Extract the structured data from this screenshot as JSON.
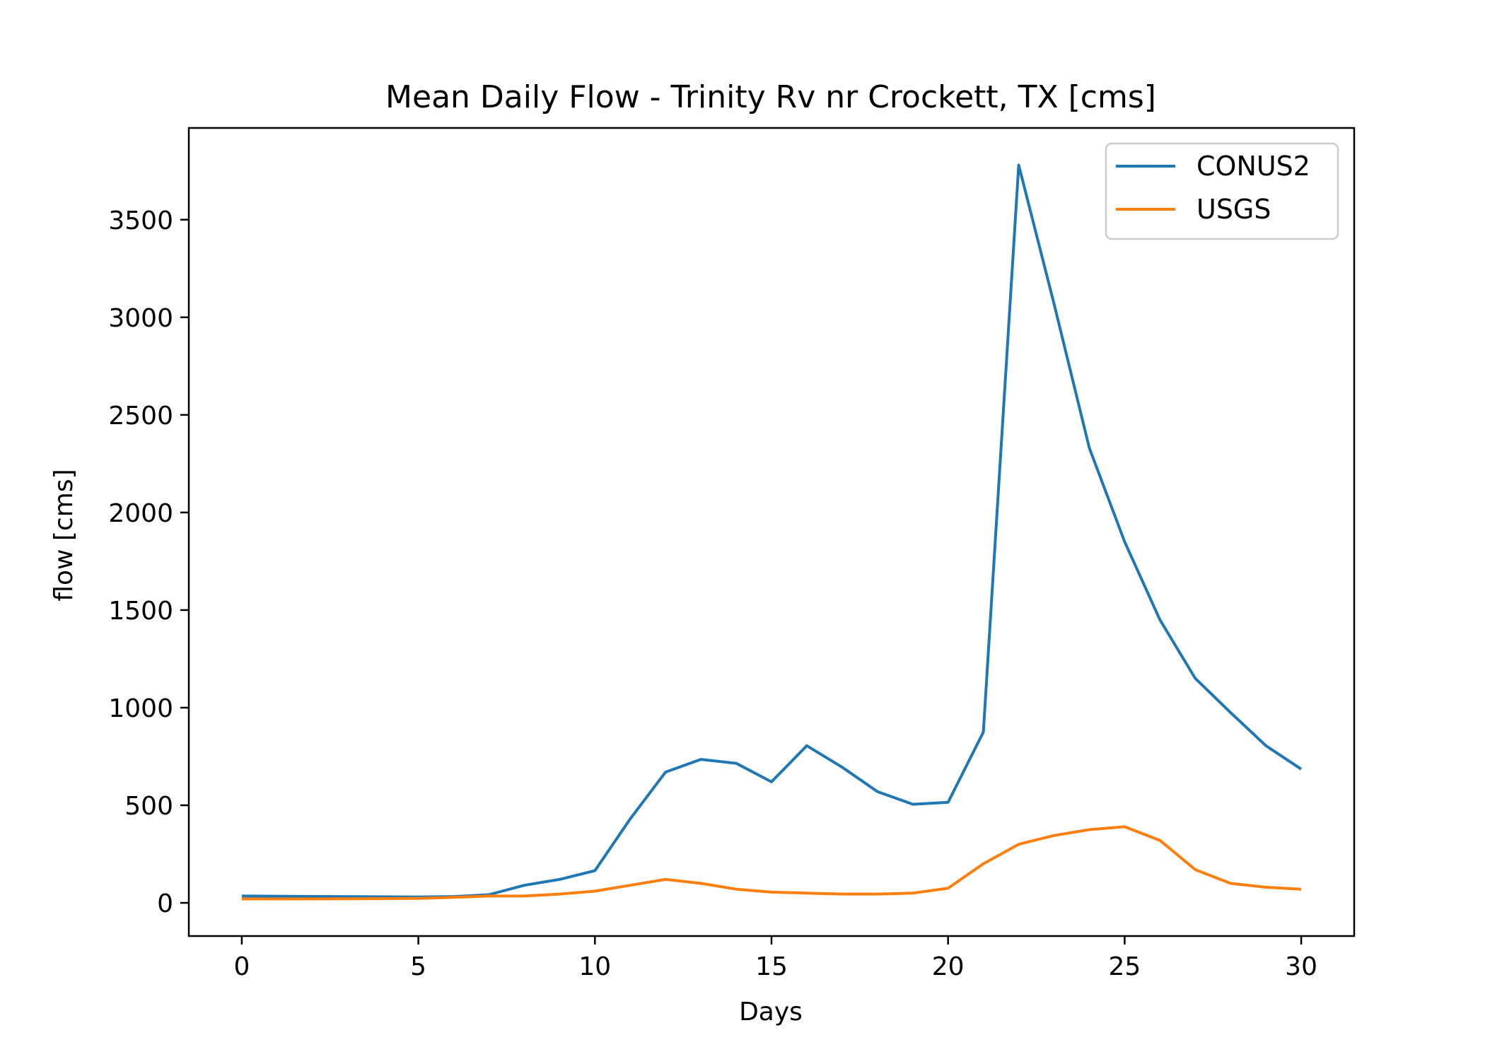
{
  "chart_data": {
    "type": "line",
    "title": "Mean Daily Flow - Trinity Rv nr Crockett, TX [cms]",
    "xlabel": "Days",
    "ylabel": "flow [cms]",
    "xlim": [
      -1.5,
      31.5
    ],
    "ylim": [
      -170,
      3970
    ],
    "xticks": [
      0,
      5,
      10,
      15,
      20,
      25,
      30
    ],
    "yticks": [
      0,
      500,
      1000,
      1500,
      2000,
      2500,
      3000,
      3500
    ],
    "grid": false,
    "legend_position": "top-right",
    "x": [
      0,
      1,
      2,
      3,
      4,
      5,
      6,
      7,
      8,
      9,
      10,
      11,
      12,
      13,
      14,
      15,
      16,
      17,
      18,
      19,
      20,
      21,
      22,
      23,
      24,
      25,
      26,
      27,
      28,
      29,
      30
    ],
    "series": [
      {
        "name": "CONUS2",
        "color": "#1f77b4",
        "values": [
          35,
          34,
          33,
          32,
          31,
          30,
          32,
          42,
          90,
          120,
          165,
          430,
          670,
          735,
          715,
          620,
          805,
          695,
          570,
          505,
          515,
          875,
          3780,
          3070,
          2330,
          1850,
          1450,
          1150,
          975,
          805,
          685
        ]
      },
      {
        "name": "USGS",
        "color": "#ff7f0e",
        "values": [
          20,
          20,
          20,
          21,
          22,
          23,
          28,
          35,
          35,
          45,
          60,
          90,
          120,
          100,
          70,
          55,
          50,
          45,
          45,
          50,
          75,
          200,
          300,
          345,
          375,
          390,
          320,
          170,
          100,
          80,
          70
        ]
      }
    ]
  }
}
